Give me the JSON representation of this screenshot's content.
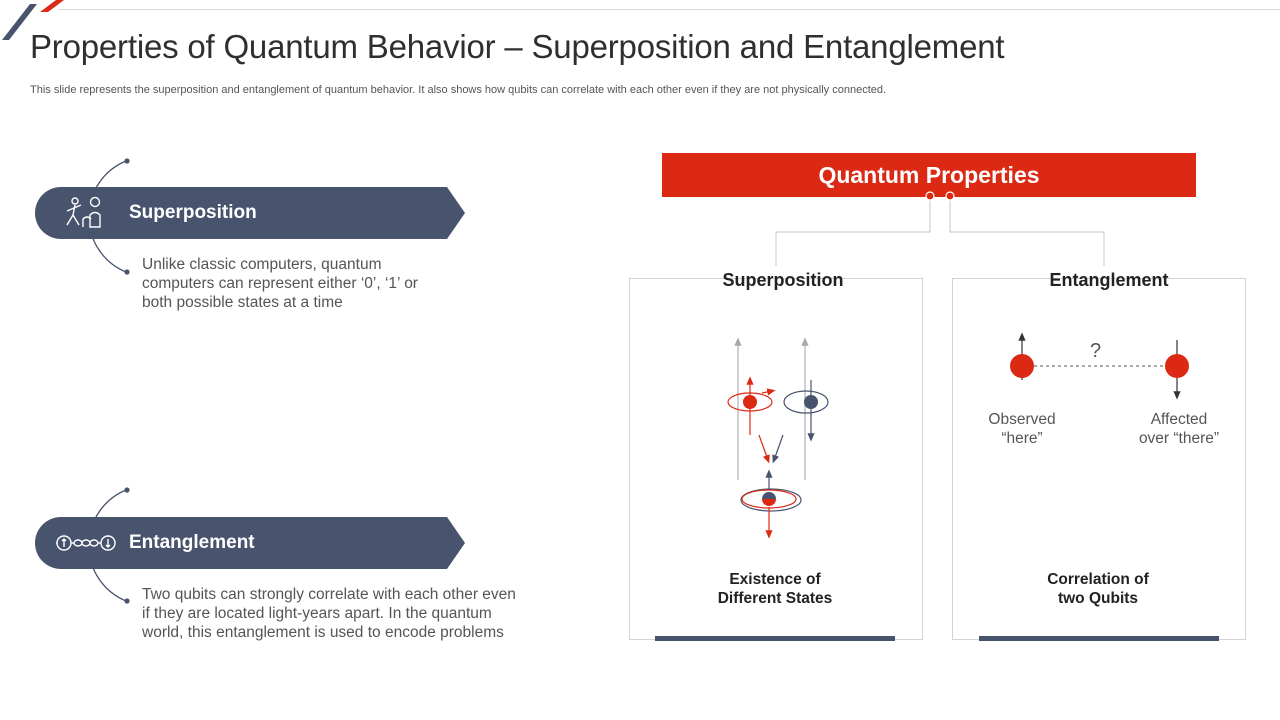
{
  "header": {
    "title": "Properties of Quantum Behavior – Superposition and Entanglement",
    "subtitle": "This slide represents the superposition and entanglement of quantum behavior. It also shows how qubits can correlate with each other even if they are not physically connected."
  },
  "left": {
    "items": [
      {
        "label": "Superposition",
        "icon": "people-icon",
        "description": [
          "Unlike classic computers, quantum",
          "computers can represent either ‘0’, ‘1’ or",
          "both possible states at a time"
        ]
      },
      {
        "label": "Entanglement",
        "icon": "chain-icon",
        "description": [
          "Two qubits can strongly correlate with each other even",
          "if they are located light-years apart. In the quantum",
          "world, this entanglement  is used to encode problems"
        ]
      }
    ]
  },
  "diagram": {
    "root": "Quantum Properties",
    "superposition": {
      "title": "Superposition",
      "caption": [
        "Existence of",
        "Different States"
      ]
    },
    "entanglement": {
      "title": "Entanglement",
      "question": "?",
      "left_label": [
        "Observed",
        "“here”"
      ],
      "right_label": [
        "Affected",
        "over “there”"
      ],
      "caption": [
        "Correlation of",
        "two Qubits"
      ]
    }
  },
  "colors": {
    "accent": "#dc2914",
    "navy": "#48536d"
  }
}
